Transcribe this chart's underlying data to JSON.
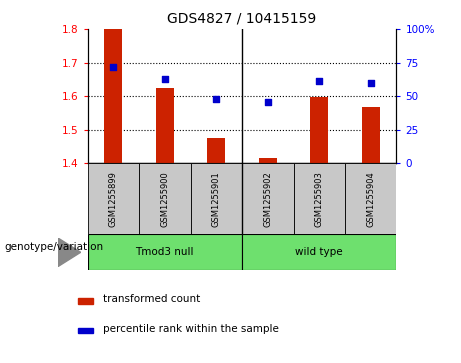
{
  "title": "GDS4827 / 10415159",
  "samples": [
    "GSM1255899",
    "GSM1255900",
    "GSM1255901",
    "GSM1255902",
    "GSM1255903",
    "GSM1255904"
  ],
  "bar_values": [
    1.8,
    1.625,
    1.475,
    1.415,
    1.598,
    1.568
  ],
  "bar_baseline": 1.4,
  "percentile_values": [
    72,
    63,
    48,
    46,
    61,
    60
  ],
  "bar_color": "#CC2200",
  "dot_color": "#0000CC",
  "ylim_left": [
    1.4,
    1.8
  ],
  "ylim_right": [
    0,
    100
  ],
  "yticks_left": [
    1.4,
    1.5,
    1.6,
    1.7,
    1.8
  ],
  "yticks_right": [
    0,
    25,
    50,
    75,
    100
  ],
  "ytick_labels_right": [
    "0",
    "25",
    "50",
    "75",
    "100%"
  ],
  "ytick_labels_left": [
    "1.4",
    "1.5",
    "1.6",
    "1.7",
    "1.8"
  ],
  "grid_values": [
    1.5,
    1.6,
    1.7
  ],
  "legend_items": [
    "transformed count",
    "percentile rank within the sample"
  ],
  "legend_colors": [
    "#CC2200",
    "#0000CC"
  ],
  "genotype_label": "genotype/variation",
  "group_labels": [
    "Tmod3 null",
    "wild type"
  ],
  "group_ranges": [
    [
      0,
      3
    ],
    [
      3,
      6
    ]
  ],
  "group_color": "#6EE06E",
  "sample_box_color": "#C8C8C8",
  "plot_bg": "#ffffff",
  "title_fontsize": 10,
  "tick_fontsize": 7.5,
  "label_fontsize": 7.5,
  "legend_fontsize": 7.5
}
